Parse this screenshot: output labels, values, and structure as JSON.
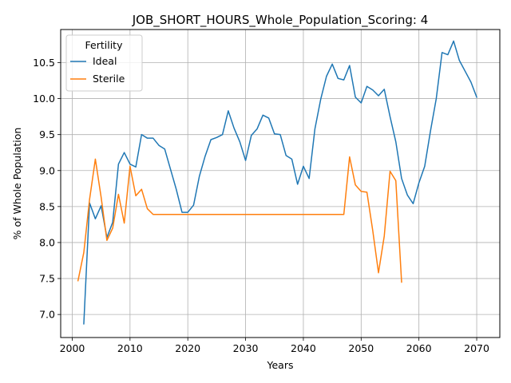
{
  "chart_data": {
    "type": "line",
    "title": "JOB_SHORT_HOURS_Whole_Population_Scoring: 4",
    "xlabel": "Years",
    "ylabel": "% of Whole Population",
    "xlim": [
      1998,
      2074
    ],
    "ylim": [
      6.68,
      10.96
    ],
    "xticks": [
      2000,
      2010,
      2020,
      2030,
      2040,
      2050,
      2060,
      2070
    ],
    "yticks": [
      7.0,
      7.5,
      8.0,
      8.5,
      9.0,
      9.5,
      10.0,
      10.5
    ],
    "grid": true,
    "legend": {
      "title": "Fertility",
      "placement": "top-left"
    },
    "series": [
      {
        "name": "Ideal",
        "color": "#1f77b4",
        "x": [
          2002,
          2003,
          2004,
          2005,
          2006,
          2007,
          2008,
          2009,
          2010,
          2011,
          2012,
          2013,
          2014,
          2015,
          2016,
          2017,
          2018,
          2019,
          2020,
          2021,
          2022,
          2023,
          2024,
          2025,
          2026,
          2027,
          2028,
          2029,
          2030,
          2031,
          2032,
          2033,
          2034,
          2035,
          2036,
          2037,
          2038,
          2039,
          2040,
          2041,
          2042,
          2043,
          2044,
          2045,
          2046,
          2047,
          2048,
          2049,
          2050,
          2051,
          2052,
          2053,
          2054,
          2055,
          2056,
          2057,
          2058,
          2059,
          2060,
          2061,
          2062,
          2063,
          2064,
          2065,
          2066,
          2067,
          2068,
          2069,
          2070
        ],
        "values": [
          6.87,
          8.55,
          8.33,
          8.51,
          8.07,
          8.28,
          9.09,
          9.25,
          9.09,
          9.05,
          9.5,
          9.45,
          9.45,
          9.35,
          9.3,
          9.02,
          8.74,
          8.42,
          8.42,
          8.52,
          8.92,
          9.2,
          9.43,
          9.46,
          9.5,
          9.83,
          9.59,
          9.4,
          9.14,
          9.49,
          9.58,
          9.77,
          9.73,
          9.51,
          9.5,
          9.21,
          9.16,
          8.81,
          9.06,
          8.89,
          9.58,
          9.99,
          10.31,
          10.48,
          10.28,
          10.26,
          10.46,
          10.02,
          9.94,
          10.17,
          10.12,
          10.04,
          10.13,
          9.75,
          9.4,
          8.89,
          8.66,
          8.54,
          8.83,
          9.06,
          9.55,
          10.0,
          10.64,
          10.61,
          10.8,
          10.53,
          10.38,
          10.23,
          10.02
        ]
      },
      {
        "name": "Sterile",
        "color": "#ff7f0e",
        "x": [
          2001,
          2002,
          2003,
          2004,
          2005,
          2006,
          2007,
          2008,
          2009,
          2010,
          2011,
          2012,
          2013,
          2014,
          2015,
          2016,
          2017,
          2018,
          2019,
          2020,
          2021,
          2022,
          2023,
          2024,
          2025,
          2026,
          2027,
          2028,
          2029,
          2030,
          2031,
          2032,
          2033,
          2034,
          2035,
          2036,
          2037,
          2038,
          2039,
          2040,
          2041,
          2042,
          2043,
          2044,
          2045,
          2046,
          2047,
          2048,
          2049,
          2050,
          2051,
          2052,
          2053,
          2054,
          2055,
          2056,
          2057
        ],
        "values": [
          7.47,
          7.86,
          8.6,
          9.16,
          8.63,
          8.03,
          8.2,
          8.67,
          8.27,
          9.06,
          8.65,
          8.74,
          8.47,
          8.39,
          8.39,
          8.39,
          8.39,
          8.39,
          8.39,
          8.39,
          8.39,
          8.39,
          8.39,
          8.39,
          8.39,
          8.39,
          8.39,
          8.39,
          8.39,
          8.39,
          8.39,
          8.39,
          8.39,
          8.39,
          8.39,
          8.39,
          8.39,
          8.39,
          8.39,
          8.39,
          8.39,
          8.39,
          8.39,
          8.39,
          8.39,
          8.39,
          8.39,
          9.19,
          8.8,
          8.71,
          8.7,
          8.17,
          7.58,
          8.09,
          8.99,
          8.86,
          7.45
        ]
      }
    ]
  }
}
